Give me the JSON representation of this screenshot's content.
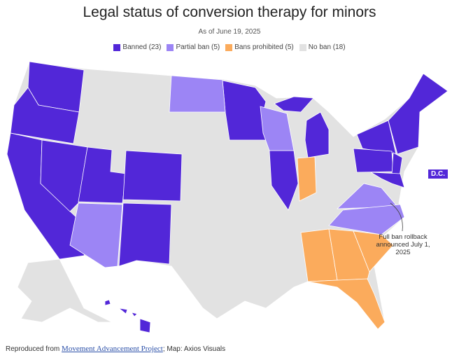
{
  "title": "Legal status of conversion therapy for minors",
  "subtitle": "As of June 19, 2025",
  "legend": [
    {
      "label": "Banned (23)",
      "color": "#5227d8"
    },
    {
      "label": "Partial ban (5)",
      "color": "#9c85f5"
    },
    {
      "label": "Bans prohibited (5)",
      "color": "#fbab5c"
    },
    {
      "label": "No ban (18)",
      "color": "#e2e2e2"
    }
  ],
  "dc_label": "D.C.",
  "annotation": "Full ban rollback announced July 1, 2025",
  "footer": {
    "prefix": "Reproduced from ",
    "link": "Movement Advancement Project",
    "suffix": "; Map: Axios Visuals"
  }
}
